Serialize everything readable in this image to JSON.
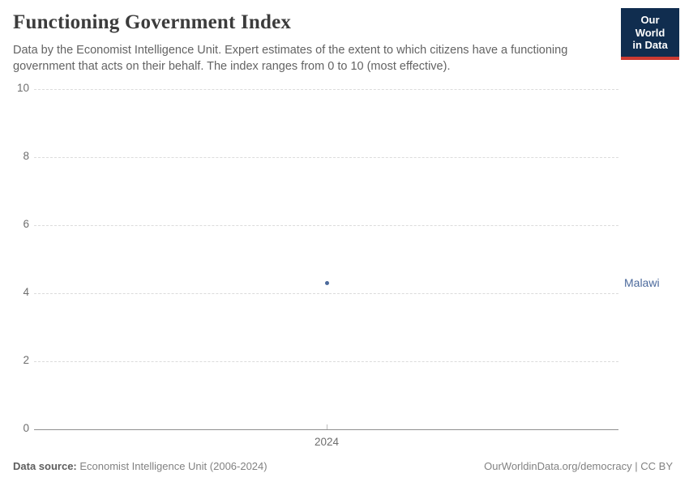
{
  "header": {
    "title": "Functioning Government Index",
    "subtitle": "Data by the Economist Intelligence Unit. Expert estimates of the extent to which citizens have a functioning government that acts on their behalf. The index ranges from 0 to 10 (most effective).",
    "logo": {
      "line1": "Our World",
      "line2": "in Data"
    }
  },
  "chart_data": {
    "type": "scatter",
    "title": "Functioning Government Index",
    "x": [
      2024
    ],
    "series": [
      {
        "name": "Malawi",
        "values": [
          4.29
        ],
        "color": "#4c6a9c"
      }
    ],
    "ylim": [
      0,
      10
    ],
    "yticks": [
      0,
      2,
      4,
      6,
      8,
      10
    ],
    "xtick_labels": [
      "2024"
    ],
    "xlabel": "",
    "ylabel": "",
    "grid": "horizontal-dashed",
    "legend_position": "entity-label-right"
  },
  "footer": {
    "source_label": "Data source:",
    "source_text": " Economist Intelligence Unit (2006-2024)",
    "attribution": "OurWorldinData.org/democracy | CC BY"
  },
  "colors": {
    "accent_navy": "#102d4f",
    "accent_red": "#cc3a32",
    "series_blue": "#4c6a9c",
    "grid": "#dcdcdc",
    "axis": "#8f8f8f",
    "tick_text": "#6e6e6e",
    "title_text": "#3c3c3c",
    "subtitle_text": "#636363",
    "footer_text": "#828282"
  }
}
